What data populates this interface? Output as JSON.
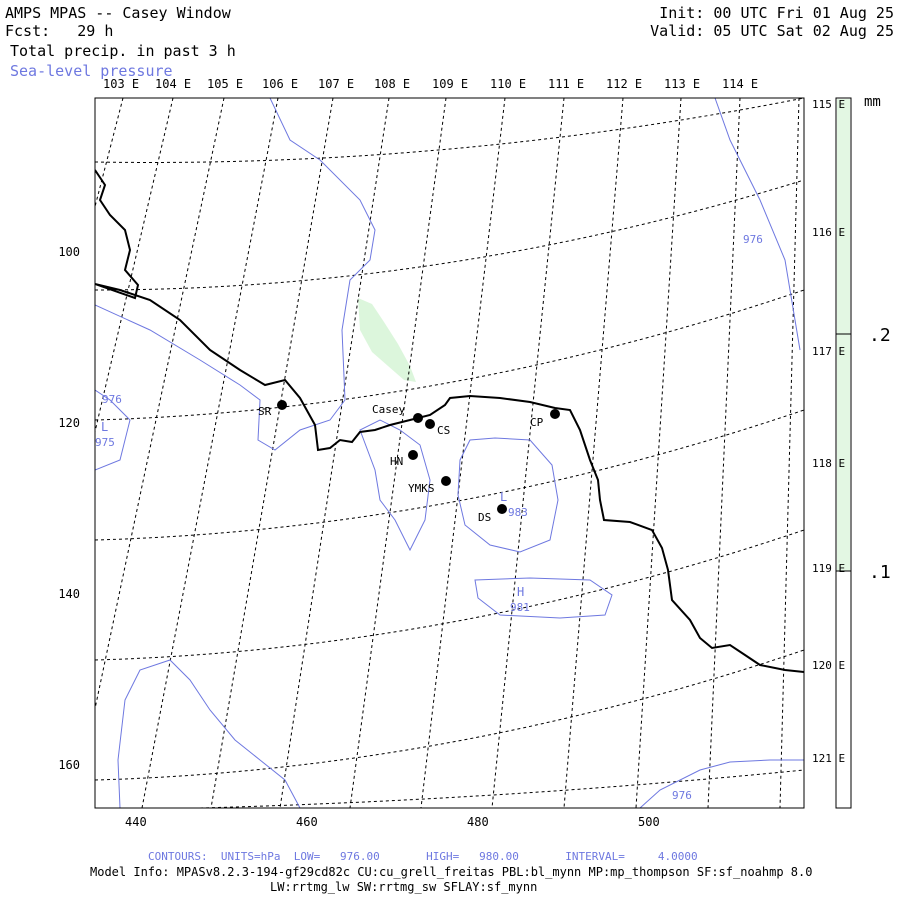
{
  "header": {
    "title": "AMPS MPAS -- Casey Window",
    "forecast": "Fcst:   29 h",
    "field": "Total precip. in past 3 h",
    "overlay": "Sea-level pressure",
    "init": "Init: 00 UTC Fri 01 Aug 25",
    "valid": "Valid: 05 UTC Sat 02 Aug 25"
  },
  "longitude_labels": [
    "103 E",
    "104 E",
    "105 E",
    "106 E",
    "107 E",
    "108 E",
    "109 E",
    "110 E",
    "111 E",
    "112 E",
    "113 E",
    "114 E"
  ],
  "latitude_labels": [
    "115 E",
    "116 E",
    "117 E",
    "118 E",
    "119 E",
    "120 E",
    "121 E"
  ],
  "y_ticks": [
    "100",
    "120",
    "140",
    "160"
  ],
  "x_ticks": [
    "440",
    "460",
    "480",
    "500"
  ],
  "colorbar": {
    "unit": "mm",
    "levels": [
      ".2",
      ".1"
    ],
    "fill_color": "#e3f7e3"
  },
  "stations": [
    {
      "name": "SR"
    },
    {
      "name": "Casey"
    },
    {
      "name": "CS"
    },
    {
      "name": "CP"
    },
    {
      "name": "HN"
    },
    {
      "name": "YMKS"
    },
    {
      "name": "DS"
    }
  ],
  "contour_labels": [
    "976",
    "976",
    "975",
    "976",
    "981",
    "983"
  ],
  "pressure_markers": [
    "L",
    "L",
    "H",
    "L"
  ],
  "colors": {
    "contour": "#6e78e0",
    "coast": "#000000",
    "precip": "#d6f5d6"
  },
  "footer": {
    "contours": "CONTOURS:  UNITS=hPa  LOW=   976.00       HIGH=   980.00       INTERVAL=     4.0000",
    "model_info": "Model Info: MPASv8.2.3-194-gf29cd82c CU:cu_grell_freitas PBL:bl_mynn MP:mp_thompson SF:sf_noahmp 8.0",
    "model_info2": "LW:rrtmg_lw SW:rrtmg_sw SFLAY:sf_mynn"
  }
}
